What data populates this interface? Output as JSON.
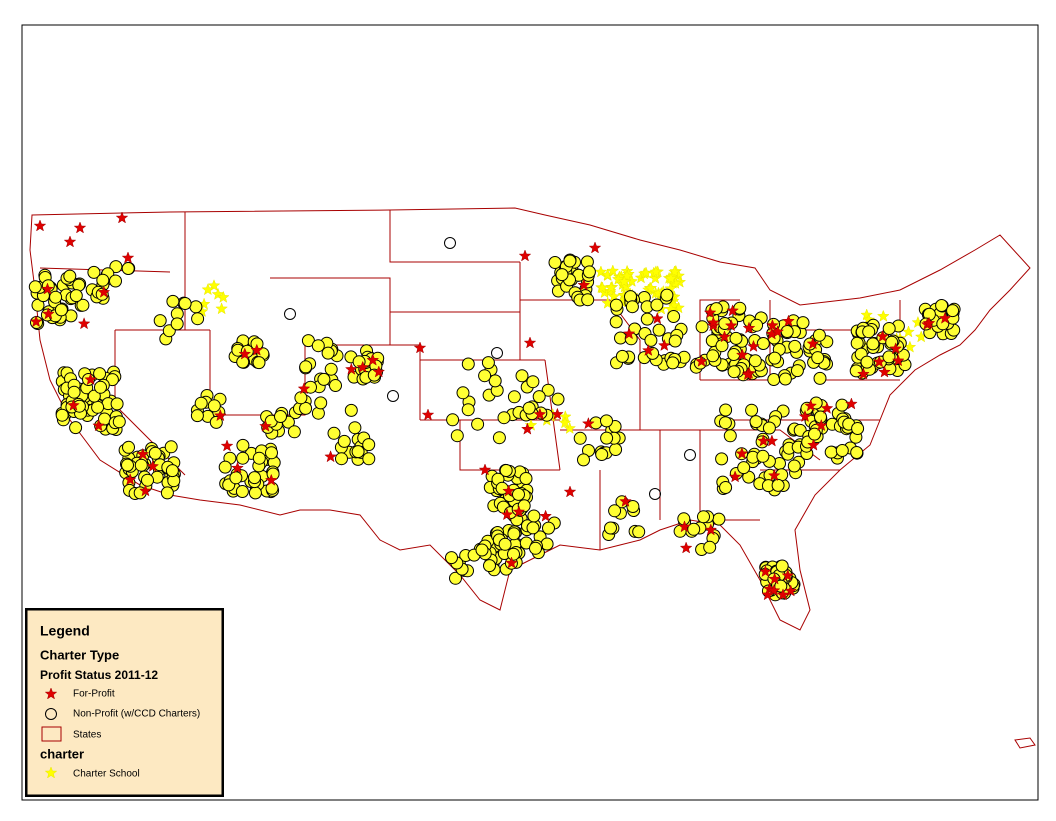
{
  "legend": {
    "title": "Legend",
    "group": "Charter Type",
    "subgroup": "Profit Status 2011-12",
    "items": [
      "For-Profit",
      "Non-Profit (w/CCD Charters)",
      "States"
    ],
    "group2": "charter",
    "items2": [
      "Charter School"
    ]
  }
}
